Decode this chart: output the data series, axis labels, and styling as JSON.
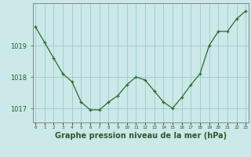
{
  "x": [
    0,
    1,
    2,
    3,
    4,
    5,
    6,
    7,
    8,
    9,
    10,
    11,
    12,
    13,
    14,
    15,
    16,
    17,
    18,
    19,
    20,
    21,
    22,
    23
  ],
  "y": [
    1019.6,
    1019.1,
    1018.6,
    1018.1,
    1017.85,
    1017.2,
    1016.95,
    1016.95,
    1017.2,
    1017.4,
    1017.75,
    1018.0,
    1017.9,
    1017.55,
    1017.2,
    1017.0,
    1017.35,
    1017.75,
    1018.1,
    1019.0,
    1019.45,
    1019.45,
    1019.85,
    1020.1
  ],
  "line_color": "#2d6a2d",
  "marker": "+",
  "bg_color": "#cce8e8",
  "grid_color": "#99cccc",
  "xlabel": "Graphe pression niveau de la mer (hPa)",
  "xlabel_fontsize": 7,
  "ytick_labels": [
    "1017",
    "1018",
    "1019"
  ],
  "ytick_values": [
    1017,
    1018,
    1019
  ],
  "ylim": [
    1016.55,
    1020.35
  ],
  "xlim": [
    -0.3,
    23.3
  ],
  "tick_color": "#2d5a2d",
  "axis_color": "#888888"
}
